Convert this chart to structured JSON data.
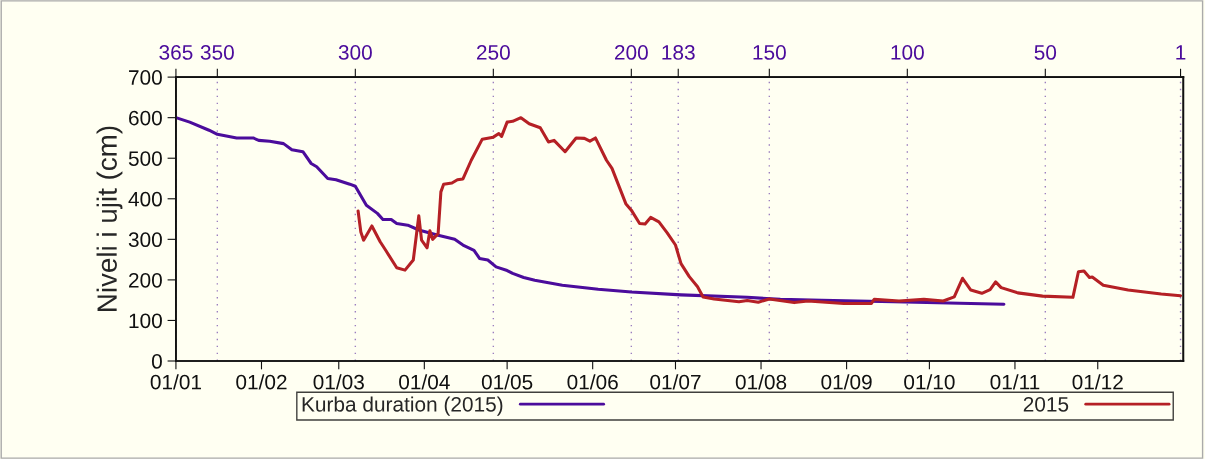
{
  "chart_data": {
    "type": "line",
    "ylabel": "Niveli i ujit (cm)",
    "xlim": [
      "2015-01-01",
      "2016-01-01"
    ],
    "xticks": [
      {
        "value": "2015-01-01",
        "label": "01/01"
      },
      {
        "value": "2015-02-01",
        "label": "01/02"
      },
      {
        "value": "2015-03-01",
        "label": "01/03"
      },
      {
        "value": "2015-04-01",
        "label": "01/04"
      },
      {
        "value": "2015-05-01",
        "label": "01/05"
      },
      {
        "value": "2015-06-01",
        "label": "01/06"
      },
      {
        "value": "2015-07-01",
        "label": "01/07"
      },
      {
        "value": "2015-08-01",
        "label": "01/08"
      },
      {
        "value": "2015-09-01",
        "label": "01/09"
      },
      {
        "value": "2015-10-01",
        "label": "01/10"
      },
      {
        "value": "2015-11-01",
        "label": "01/11"
      },
      {
        "value": "2015-12-01",
        "label": "01/12"
      }
    ],
    "x2lim": [
      365,
      0
    ],
    "x2ticks": [
      365,
      350,
      300,
      250,
      200,
      183,
      150,
      100,
      50,
      1
    ],
    "ylim": [
      0,
      700
    ],
    "yticks": [
      0,
      100,
      200,
      300,
      400,
      500,
      600,
      700
    ],
    "grid": "x2",
    "legend": "bottom",
    "series": [
      {
        "name": "Kurba duration (2015)",
        "color": "#4b0c9c",
        "x": [
          "2015-01-01",
          "2015-01-06",
          "2015-01-13",
          "2015-01-16",
          "2015-01-23",
          "2015-01-29",
          "2015-01-31",
          "2015-02-04",
          "2015-02-09",
          "2015-02-12",
          "2015-02-16",
          "2015-02-19",
          "2015-02-21",
          "2015-02-25",
          "2015-02-28",
          "2015-03-05",
          "2015-03-07",
          "2015-03-11",
          "2015-03-15",
          "2015-03-17",
          "2015-03-20",
          "2015-03-22",
          "2015-03-26",
          "2015-03-30",
          "2015-04-06",
          "2015-04-12",
          "2015-04-15",
          "2015-04-19",
          "2015-04-21",
          "2015-04-24",
          "2015-04-27",
          "2015-05-01",
          "2015-05-03",
          "2015-05-07",
          "2015-05-11",
          "2015-05-21",
          "2015-06-03",
          "2015-06-15",
          "2015-07-03",
          "2015-07-27",
          "2015-08-08",
          "2015-08-23",
          "2015-09-18",
          "2015-10-28"
        ],
        "values": [
          600,
          589,
          569,
          559,
          550,
          550,
          544,
          542,
          536,
          521,
          516,
          487,
          479,
          450,
          447,
          436,
          431,
          384,
          364,
          349,
          349,
          339,
          335,
          323,
          310,
          300,
          286,
          273,
          253,
          249,
          232,
          223,
          216,
          206,
          199,
          187,
          177,
          170,
          163,
          157,
          152,
          150,
          146,
          140
        ]
      },
      {
        "name": "2015",
        "color": "#b52025",
        "x": [
          "2015-03-08",
          "2015-03-09",
          "2015-03-10",
          "2015-03-13",
          "2015-03-16",
          "2015-03-18",
          "2015-03-22",
          "2015-03-25",
          "2015-03-28",
          "2015-03-30",
          "2015-03-31",
          "2015-04-02",
          "2015-04-03",
          "2015-04-04",
          "2015-04-06",
          "2015-04-07",
          "2015-04-08",
          "2015-04-11",
          "2015-04-13",
          "2015-04-15",
          "2015-04-18",
          "2015-04-22",
          "2015-04-26",
          "2015-04-28",
          "2015-04-29",
          "2015-05-01",
          "2015-05-03",
          "2015-05-06",
          "2015-05-09",
          "2015-05-13",
          "2015-05-16",
          "2015-05-18",
          "2015-05-22",
          "2015-05-26",
          "2015-05-29",
          "2015-05-31",
          "2015-06-02",
          "2015-06-06",
          "2015-06-08",
          "2015-06-13",
          "2015-06-15",
          "2015-06-18",
          "2015-06-20",
          "2015-06-22",
          "2015-06-25",
          "2015-06-28",
          "2015-07-01",
          "2015-07-03",
          "2015-07-06",
          "2015-07-09",
          "2015-07-11",
          "2015-07-15",
          "2015-07-24",
          "2015-07-27",
          "2015-07-31",
          "2015-08-04",
          "2015-08-13",
          "2015-08-18",
          "2015-08-31",
          "2015-09-10",
          "2015-09-11",
          "2015-09-20",
          "2015-09-29",
          "2015-10-06",
          "2015-10-10",
          "2015-10-13",
          "2015-10-16",
          "2015-10-20",
          "2015-10-23",
          "2015-10-25",
          "2015-10-27",
          "2015-11-02",
          "2015-11-11",
          "2015-11-22",
          "2015-11-24",
          "2015-11-26",
          "2015-11-28",
          "2015-11-29",
          "2015-12-03",
          "2015-12-12",
          "2015-12-24",
          "2015-12-31"
        ],
        "values": [
          370,
          318,
          298,
          333,
          294,
          273,
          230,
          224,
          249,
          358,
          298,
          279,
          321,
          300,
          314,
          417,
          436,
          439,
          447,
          449,
          495,
          547,
          552,
          561,
          554,
          589,
          591,
          600,
          585,
          575,
          540,
          544,
          516,
          550,
          549,
          542,
          550,
          495,
          475,
          388,
          372,
          339,
          338,
          354,
          343,
          316,
          286,
          240,
          208,
          183,
          158,
          153,
          146,
          149,
          145,
          153,
          144,
          148,
          142,
          142,
          152,
          148,
          152,
          148,
          158,
          204,
          175,
          167,
          176,
          195,
          181,
          168,
          160,
          157,
          220,
          222,
          206,
          207,
          187,
          175,
          165,
          161
        ]
      }
    ]
  }
}
